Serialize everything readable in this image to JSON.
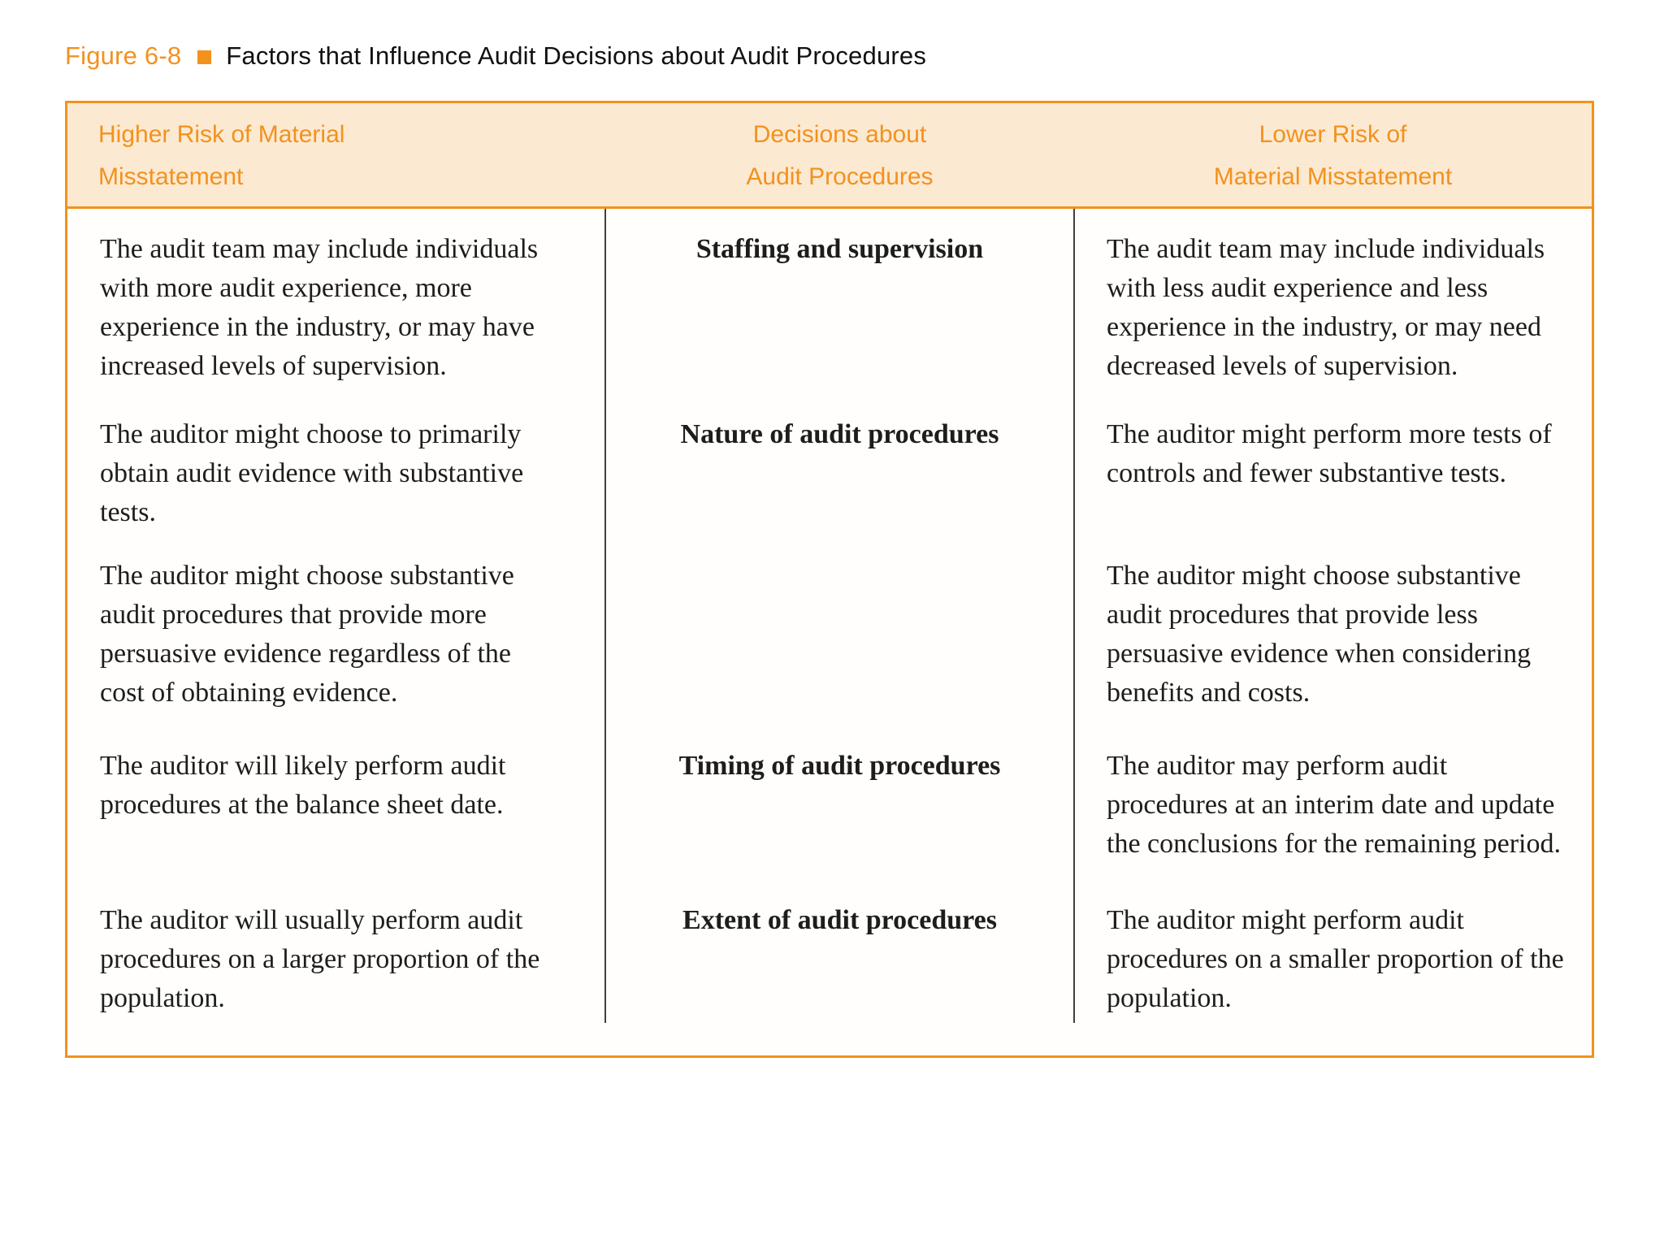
{
  "figure": {
    "label": "Figure 6-8",
    "title": "Factors that Influence Audit Decisions about Audit Procedures"
  },
  "table": {
    "header": {
      "col1": {
        "line1": "Higher Risk of Material",
        "line2": "Misstatement"
      },
      "col2": {
        "line1": "Decisions about",
        "line2": "Audit Procedures"
      },
      "col3": {
        "line1": "Lower Risk of",
        "line2": "Material Misstatement"
      }
    },
    "rows": [
      {
        "higher_risk": "The audit team may include individuals with more audit experience, more experience in the industry, or may have increased levels of supervision.",
        "decision": "Staffing and supervision",
        "lower_risk": "The audit team may include individuals with less audit experience and less experience in the industry, or may need decreased levels of supervision."
      },
      {
        "higher_risk": "The auditor might choose to primarily obtain audit evidence with substantive tests.",
        "decision": "Nature of audit procedures",
        "lower_risk": "The auditor might perform more tests of controls and fewer substantive tests."
      },
      {
        "higher_risk": "The auditor might choose substantive audit procedures that provide more persuasive evidence regardless of the cost of obtaining evidence.",
        "decision": "",
        "lower_risk": "The auditor might choose substantive audit procedures that provide less persuasive evidence when considering benefits and costs."
      },
      {
        "higher_risk": "The auditor will likely perform audit procedures at the balance sheet date.",
        "decision": "Timing of audit procedures",
        "lower_risk": "The auditor may perform audit procedures at an interim date and update the conclusions for the remaining period."
      },
      {
        "higher_risk": "The auditor will usually perform audit procedures on a larger proportion of the population.",
        "decision": "Extent of audit procedures",
        "lower_risk": "The auditor might perform audit procedures on a smaller proportion of the population."
      }
    ]
  },
  "colors": {
    "accent_orange": "#f2921d",
    "header_bg": "#fce9d2",
    "body_text": "#1d1d1b",
    "divider": "#3f3f3f",
    "page_bg": "#ffffff"
  }
}
